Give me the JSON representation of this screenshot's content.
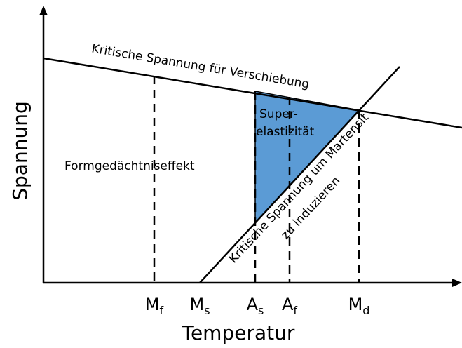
{
  "axes": {
    "y_label": "Spannung",
    "x_label": "Temperatur"
  },
  "lines": {
    "upper": "Kritische Spannung für Verschiebung",
    "diagonal": [
      "Kritische Spannung um Martensit",
      "zu induzieren"
    ]
  },
  "regions": {
    "superelasticity": [
      "Super-",
      "elastizität"
    ],
    "shape_memory": "Formgedächtniseffekt"
  },
  "temperatures": [
    {
      "symbol": "M",
      "sub": "f"
    },
    {
      "symbol": "M",
      "sub": "s"
    },
    {
      "symbol": "A",
      "sub": "s"
    },
    {
      "symbol": "A",
      "sub": "f"
    },
    {
      "symbol": "M",
      "sub": "d"
    }
  ]
}
